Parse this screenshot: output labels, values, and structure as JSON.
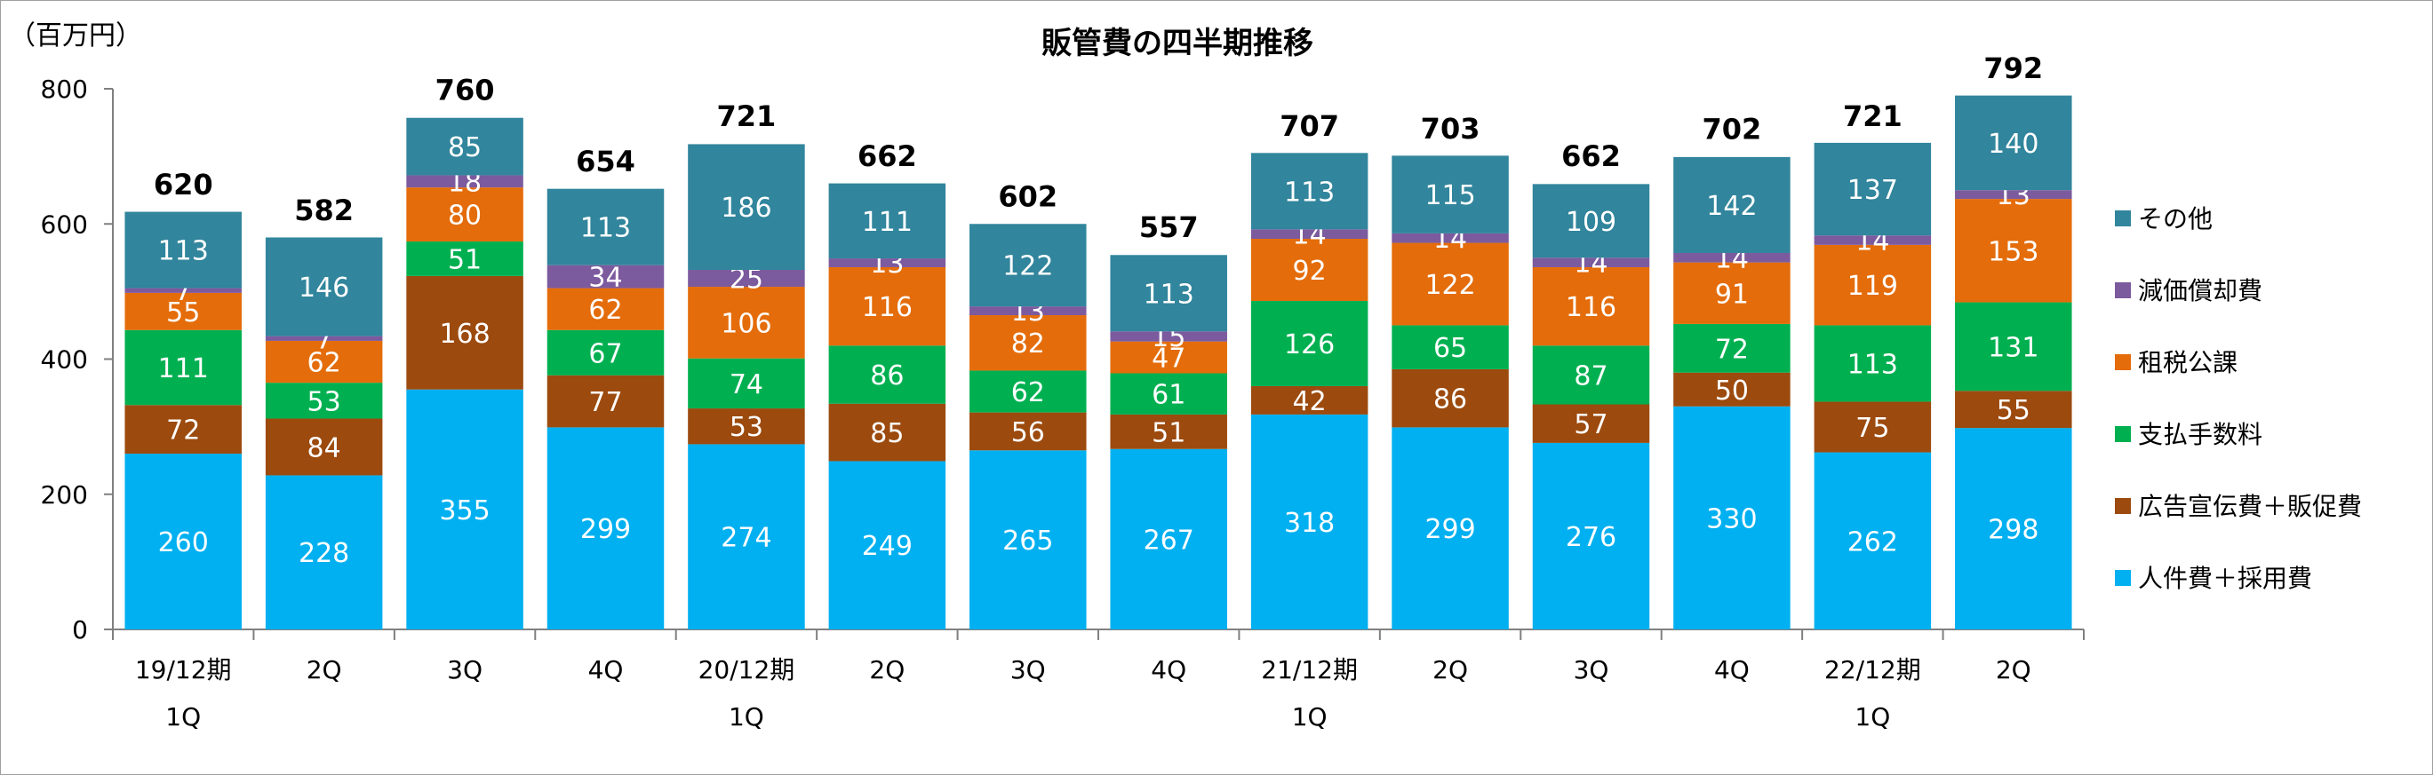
{
  "chart_data": {
    "type": "bar",
    "stacked": true,
    "title": "販管費の四半期推移",
    "unit_label": "（百万円）",
    "ylim": [
      0,
      800
    ],
    "yticks": [
      0,
      200,
      400,
      600,
      800
    ],
    "categories": [
      [
        "19/12期",
        "1Q"
      ],
      [
        "2Q"
      ],
      [
        "3Q"
      ],
      [
        "4Q"
      ],
      [
        "20/12期",
        "1Q"
      ],
      [
        "2Q"
      ],
      [
        "3Q"
      ],
      [
        "4Q"
      ],
      [
        "21/12期",
        "1Q"
      ],
      [
        "2Q"
      ],
      [
        "3Q"
      ],
      [
        "4Q"
      ],
      [
        "22/12期",
        "1Q"
      ],
      [
        "2Q"
      ]
    ],
    "series": [
      {
        "name": "人件費＋採用費",
        "color": "#00b0f0",
        "values": [
          260,
          228,
          355,
          299,
          274,
          249,
          265,
          267,
          318,
          299,
          276,
          330,
          262,
          298
        ]
      },
      {
        "name": "広告宣伝費＋販促費",
        "color": "#9c4a0e",
        "values": [
          72,
          84,
          168,
          77,
          53,
          85,
          56,
          51,
          42,
          86,
          57,
          50,
          75,
          55
        ]
      },
      {
        "name": "支払手数料",
        "color": "#00b050",
        "values": [
          111,
          53,
          51,
          67,
          74,
          86,
          62,
          61,
          126,
          65,
          87,
          72,
          113,
          131
        ]
      },
      {
        "name": "租税公課",
        "color": "#e46c0a",
        "values": [
          55,
          62,
          80,
          62,
          106,
          116,
          82,
          47,
          92,
          122,
          116,
          91,
          119,
          153
        ]
      },
      {
        "name": "減価償却費",
        "color": "#7c5a9e",
        "values": [
          7,
          7,
          18,
          34,
          25,
          13,
          13,
          15,
          14,
          14,
          14,
          14,
          14,
          13
        ]
      },
      {
        "name": "その他",
        "color": "#31859c",
        "values": [
          113,
          146,
          85,
          113,
          186,
          111,
          122,
          113,
          113,
          115,
          109,
          142,
          137,
          140
        ]
      }
    ],
    "totals": [
      620,
      582,
      760,
      654,
      721,
      662,
      602,
      557,
      707,
      703,
      662,
      702,
      721,
      792
    ],
    "legend_position": "right",
    "grid": false
  }
}
